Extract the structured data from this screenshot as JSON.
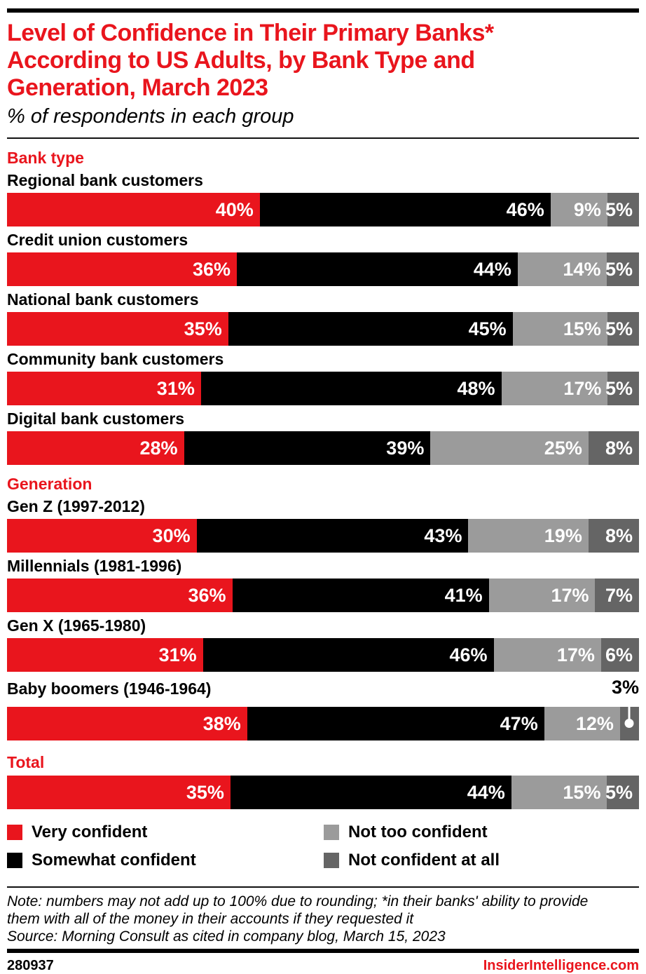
{
  "colors": {
    "red": "#E9151D",
    "black": "#000000",
    "light_gray": "#9B9B9B",
    "dark_gray": "#656565"
  },
  "header": {
    "title_lines": [
      "Level of Confidence in Their Primary Banks*",
      "According to US Adults, by Bank Type and",
      "Generation, March 2023"
    ],
    "subtitle": "% of respondents in each group"
  },
  "chart_data": {
    "type": "bar",
    "stacked": true,
    "orientation": "horizontal",
    "normalized_to_full_width": true,
    "value_suffix": "%",
    "legend_position": "bottom",
    "series_names": [
      "Very confident",
      "Somewhat confident",
      "Not too confident",
      "Not confident at all"
    ],
    "series_colors": [
      "#E9151D",
      "#000000",
      "#9B9B9B",
      "#656565"
    ],
    "groups": [
      {
        "title": "Bank type",
        "rows": [
          {
            "label": "Regional bank customers",
            "values": [
              40,
              46,
              9,
              5
            ]
          },
          {
            "label": "Credit union customers",
            "values": [
              36,
              44,
              14,
              5
            ]
          },
          {
            "label": "National bank customers",
            "values": [
              35,
              45,
              15,
              5
            ]
          },
          {
            "label": "Community bank customers",
            "values": [
              31,
              48,
              17,
              5
            ]
          },
          {
            "label": "Digital bank customers",
            "values": [
              28,
              39,
              25,
              8
            ]
          }
        ]
      },
      {
        "title": "Generation",
        "rows": [
          {
            "label": "Gen Z (1997-2012)",
            "values": [
              30,
              43,
              19,
              8
            ]
          },
          {
            "label": "Millennials (1981-1996)",
            "values": [
              36,
              41,
              17,
              7
            ]
          },
          {
            "label": "Gen X (1965-1980)",
            "values": [
              31,
              46,
              17,
              6
            ]
          },
          {
            "label": "Baby boomers (1946-1964)",
            "values": [
              38,
              47,
              12,
              3
            ],
            "callout": {
              "segment_index": 3,
              "label": "3%"
            }
          }
        ]
      },
      {
        "title": "Total",
        "rows": [
          {
            "label": "",
            "values": [
              35,
              44,
              15,
              5
            ]
          }
        ]
      }
    ]
  },
  "legend": [
    {
      "label": "Very confident",
      "color": "#E9151D"
    },
    {
      "label": "Somewhat confident",
      "color": "#000000"
    },
    {
      "label": "Not too confident",
      "color": "#9B9B9B"
    },
    {
      "label": "Not confident at all",
      "color": "#656565"
    }
  ],
  "footer": {
    "note_lines": [
      "Note: numbers may not add up to 100% due to rounding; *in their banks' ability to provide",
      "them with all of the money in their accounts if they requested it"
    ],
    "source": "Source: Morning Consult as cited in company blog, March 15, 2023",
    "chart_id": "280937",
    "site": "InsiderIntelligence.com"
  }
}
